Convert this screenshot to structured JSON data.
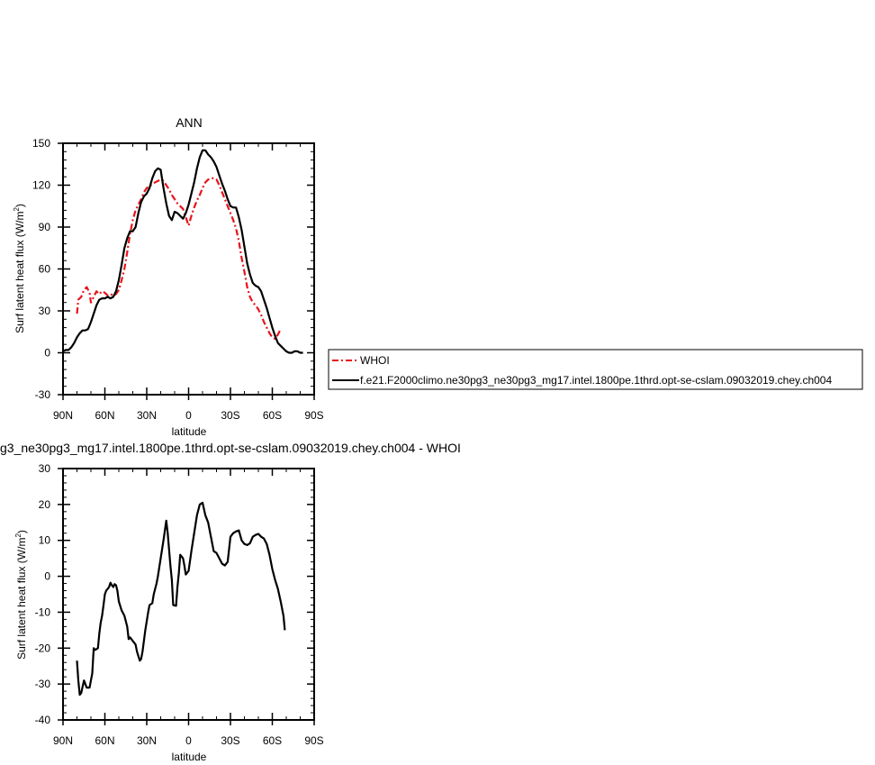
{
  "chart_data": [
    {
      "type": "line",
      "title": "ANN",
      "xlabel": "latitude",
      "ylabel": "Surf latent heat flux (W/m",
      "ylabel_sup": "2",
      "ylabel_close": ")",
      "xlim": [
        90,
        -90
      ],
      "ylim": [
        -30,
        150
      ],
      "x_ticks": [
        90,
        60,
        30,
        0,
        -30,
        -60,
        -90
      ],
      "x_tick_labels": [
        "90N",
        "60N",
        "30N",
        "0",
        "30S",
        "60S",
        "90S"
      ],
      "y_ticks": [
        -30,
        0,
        30,
        60,
        90,
        120,
        150
      ],
      "y_tick_labels": [
        "-30",
        "0",
        "30",
        "60",
        "90",
        "120",
        "150"
      ],
      "legend_position": "right",
      "series": [
        {
          "name": "WHOI",
          "color": "#e8141c",
          "dash": true,
          "points": [
            [
              80,
              28
            ],
            [
              79,
              38
            ],
            [
              77,
              40
            ],
            [
              75,
              45
            ],
            [
              73,
              47
            ],
            [
              71,
              43
            ],
            [
              70,
              36
            ],
            [
              68,
              40
            ],
            [
              66,
              44
            ],
            [
              64,
              42
            ],
            [
              62,
              44
            ],
            [
              60,
              43
            ],
            [
              58,
              41
            ],
            [
              56,
              42
            ],
            [
              54,
              41
            ],
            [
              52,
              42
            ],
            [
              50,
              45
            ],
            [
              48,
              52
            ],
            [
              46,
              60
            ],
            [
              44,
              72
            ],
            [
              42,
              85
            ],
            [
              40,
              95
            ],
            [
              38,
              102
            ],
            [
              36,
              106
            ],
            [
              34,
              110
            ],
            [
              32,
              115
            ],
            [
              30,
              118
            ],
            [
              28,
              119
            ],
            [
              26,
              121
            ],
            [
              24,
              122
            ],
            [
              22,
              123
            ],
            [
              20,
              124
            ],
            [
              18,
              123
            ],
            [
              16,
              120
            ],
            [
              14,
              117
            ],
            [
              12,
              113
            ],
            [
              10,
              110
            ],
            [
              8,
              107
            ],
            [
              6,
              105
            ],
            [
              4,
              103
            ],
            [
              2,
              97
            ],
            [
              0,
              91
            ],
            [
              -2,
              98
            ],
            [
              -4,
              104
            ],
            [
              -6,
              109
            ],
            [
              -8,
              113
            ],
            [
              -10,
              118
            ],
            [
              -12,
              122
            ],
            [
              -14,
              124
            ],
            [
              -16,
              125
            ],
            [
              -18,
              125
            ],
            [
              -20,
              124
            ],
            [
              -22,
              120
            ],
            [
              -24,
              115
            ],
            [
              -26,
              110
            ],
            [
              -28,
              105
            ],
            [
              -30,
              100
            ],
            [
              -32,
              95
            ],
            [
              -34,
              89
            ],
            [
              -36,
              80
            ],
            [
              -38,
              68
            ],
            [
              -40,
              58
            ],
            [
              -42,
              47
            ],
            [
              -44,
              40
            ],
            [
              -46,
              36
            ],
            [
              -48,
              34
            ],
            [
              -50,
              31
            ],
            [
              -52,
              27
            ],
            [
              -54,
              22
            ],
            [
              -56,
              18
            ],
            [
              -58,
              14
            ],
            [
              -60,
              11
            ],
            [
              -62,
              10
            ],
            [
              -64,
              13
            ],
            [
              -66,
              17
            ]
          ]
        },
        {
          "name": "f.e21.F2000climo.ne30pg3_ne30pg3_mg17.intel.1800pe.1thrd.opt-se-cslam.09032019.chey.ch004",
          "color": "#000000",
          "dash": false,
          "points": [
            [
              90,
              1
            ],
            [
              88,
              2
            ],
            [
              86,
              2
            ],
            [
              84,
              4
            ],
            [
              82,
              7
            ],
            [
              80,
              11
            ],
            [
              78,
              14
            ],
            [
              76,
              16
            ],
            [
              74,
              16
            ],
            [
              72,
              17
            ],
            [
              70,
              22
            ],
            [
              68,
              28
            ],
            [
              66,
              34
            ],
            [
              64,
              38
            ],
            [
              62,
              39
            ],
            [
              60,
              39
            ],
            [
              58,
              40
            ],
            [
              56,
              39
            ],
            [
              54,
              40
            ],
            [
              52,
              44
            ],
            [
              50,
              52
            ],
            [
              48,
              63
            ],
            [
              46,
              75
            ],
            [
              44,
              82
            ],
            [
              42,
              87
            ],
            [
              40,
              87
            ],
            [
              38,
              90
            ],
            [
              36,
              100
            ],
            [
              34,
              108
            ],
            [
              32,
              112
            ],
            [
              30,
              114
            ],
            [
              28,
              118
            ],
            [
              26,
              125
            ],
            [
              24,
              130
            ],
            [
              22,
              132
            ],
            [
              20,
              131
            ],
            [
              18,
              118
            ],
            [
              16,
              107
            ],
            [
              14,
              98
            ],
            [
              12,
              95
            ],
            [
              10,
              101
            ],
            [
              8,
              100
            ],
            [
              6,
              98
            ],
            [
              4,
              96
            ],
            [
              2,
              100
            ],
            [
              0,
              106
            ],
            [
              -2,
              114
            ],
            [
              -4,
              122
            ],
            [
              -6,
              132
            ],
            [
              -8,
              140
            ],
            [
              -10,
              145
            ],
            [
              -12,
              145
            ],
            [
              -14,
              142
            ],
            [
              -16,
              140
            ],
            [
              -18,
              137
            ],
            [
              -20,
              133
            ],
            [
              -22,
              127
            ],
            [
              -24,
              121
            ],
            [
              -26,
              116
            ],
            [
              -28,
              110
            ],
            [
              -30,
              105
            ],
            [
              -32,
              104
            ],
            [
              -34,
              104
            ],
            [
              -36,
              97
            ],
            [
              -38,
              88
            ],
            [
              -40,
              76
            ],
            [
              -42,
              64
            ],
            [
              -44,
              56
            ],
            [
              -46,
              50
            ],
            [
              -48,
              48
            ],
            [
              -50,
              47
            ],
            [
              -52,
              44
            ],
            [
              -54,
              38
            ],
            [
              -56,
              32
            ],
            [
              -58,
              25
            ],
            [
              -60,
              18
            ],
            [
              -62,
              12
            ],
            [
              -64,
              7
            ],
            [
              -66,
              5
            ],
            [
              -68,
              3
            ],
            [
              -70,
              1
            ],
            [
              -72,
              0
            ],
            [
              -74,
              0
            ],
            [
              -76,
              1
            ],
            [
              -78,
              1
            ],
            [
              -80,
              0
            ],
            [
              -82,
              0
            ]
          ]
        }
      ]
    },
    {
      "type": "line",
      "title": "g3_ne30pg3_mg17.intel.1800pe.1thrd.opt-se-cslam.09032019.chey.ch004 - WHOI",
      "xlabel": "latitude",
      "ylabel": "Surf latent heat flux (W/m",
      "ylabel_sup": "2",
      "ylabel_close": ")",
      "xlim": [
        90,
        -90
      ],
      "ylim": [
        -40,
        30
      ],
      "x_ticks": [
        90,
        60,
        30,
        0,
        -30,
        -60,
        -90
      ],
      "x_tick_labels": [
        "90N",
        "60N",
        "30N",
        "0",
        "30S",
        "60S",
        "90S"
      ],
      "y_ticks": [
        -40,
        -30,
        -20,
        -10,
        0,
        10,
        20,
        30
      ],
      "y_tick_labels": [
        "-40",
        "-30",
        "-20",
        "-10",
        "0",
        "10",
        "20",
        "30"
      ],
      "series": [
        {
          "color": "#000000",
          "dash": false,
          "points": [
            [
              80,
              -23.5
            ],
            [
              79,
              -29
            ],
            [
              78,
              -33
            ],
            [
              77,
              -32.5
            ],
            [
              75,
              -29
            ],
            [
              73,
              -31
            ],
            [
              71,
              -31
            ],
            [
              69,
              -27
            ],
            [
              68,
              -20
            ],
            [
              67,
              -20.5
            ],
            [
              65,
              -20
            ],
            [
              64,
              -16
            ],
            [
              63,
              -13
            ],
            [
              62,
              -11
            ],
            [
              61,
              -8
            ],
            [
              60,
              -5
            ],
            [
              59,
              -4
            ],
            [
              57,
              -3
            ],
            [
              56,
              -1.8
            ],
            [
              55,
              -2.5
            ],
            [
              54,
              -3
            ],
            [
              53,
              -2.2
            ],
            [
              52,
              -2.5
            ],
            [
              51,
              -4
            ],
            [
              50,
              -7
            ],
            [
              48,
              -9.5
            ],
            [
              46,
              -11
            ],
            [
              44,
              -14
            ],
            [
              43,
              -17.5
            ],
            [
              42,
              -17
            ],
            [
              40,
              -18
            ],
            [
              38,
              -19
            ],
            [
              37,
              -21
            ],
            [
              35,
              -23.5
            ],
            [
              34,
              -23
            ],
            [
              33,
              -21
            ],
            [
              31,
              -15
            ],
            [
              29,
              -10
            ],
            [
              28,
              -8
            ],
            [
              26,
              -7.5
            ],
            [
              25,
              -5
            ],
            [
              23,
              -2
            ],
            [
              22,
              0
            ],
            [
              20,
              5
            ],
            [
              18,
              10
            ],
            [
              16,
              15.5
            ],
            [
              15,
              12
            ],
            [
              13,
              3
            ],
            [
              12,
              -1
            ],
            [
              11,
              -8
            ],
            [
              9,
              -8.2
            ],
            [
              8,
              -3
            ],
            [
              7,
              1
            ],
            [
              6,
              6
            ],
            [
              4,
              5
            ],
            [
              3,
              3
            ],
            [
              2,
              0.5
            ],
            [
              0,
              1.5
            ],
            [
              -2,
              7
            ],
            [
              -4,
              12
            ],
            [
              -6,
              17
            ],
            [
              -8,
              20
            ],
            [
              -10,
              20.5
            ],
            [
              -12,
              17
            ],
            [
              -14,
              15
            ],
            [
              -16,
              11
            ],
            [
              -18,
              7
            ],
            [
              -20,
              6.5
            ],
            [
              -22,
              5
            ],
            [
              -24,
              3.5
            ],
            [
              -26,
              3
            ],
            [
              -28,
              4
            ],
            [
              -30,
              11
            ],
            [
              -32,
              12
            ],
            [
              -34,
              12.5
            ],
            [
              -36,
              12.8
            ],
            [
              -38,
              10
            ],
            [
              -40,
              9
            ],
            [
              -42,
              8.7
            ],
            [
              -44,
              9.2
            ],
            [
              -46,
              11
            ],
            [
              -48,
              11.5
            ],
            [
              -50,
              11.8
            ],
            [
              -52,
              11
            ],
            [
              -54,
              10.5
            ],
            [
              -56,
              9
            ],
            [
              -58,
              6
            ],
            [
              -60,
              2
            ],
            [
              -62,
              -1
            ],
            [
              -64,
              -3.5
            ],
            [
              -66,
              -7
            ],
            [
              -68,
              -11
            ],
            [
              -69,
              -15
            ]
          ]
        }
      ]
    }
  ]
}
